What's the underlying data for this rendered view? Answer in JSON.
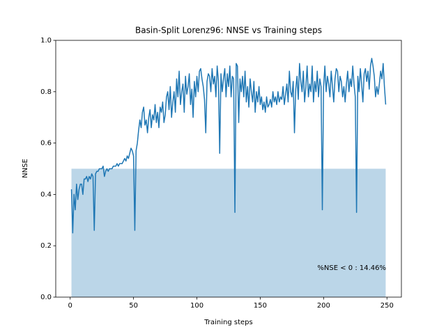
{
  "chart_data": {
    "type": "line",
    "title": "Basin-Split Lorenz96: NNSE vs Training steps",
    "xlabel": "Training steps",
    "ylabel": "NNSE",
    "annotation": "%NSE < 0 : 14.46%",
    "color": "#1f77b4",
    "shaded_region": {
      "x": [
        1,
        249
      ],
      "y": [
        0,
        0.5
      ],
      "color": "#1f77b4"
    },
    "xlim": [
      -11.4,
      261.4
    ],
    "ylim": [
      0,
      1
    ],
    "xticks": [
      0,
      50,
      100,
      150,
      200,
      250
    ],
    "yticks": [
      {
        "value": 0,
        "label": "0.0"
      },
      {
        "value": 0.2,
        "label": "0.2"
      },
      {
        "value": 0.4,
        "label": "0.4"
      },
      {
        "value": 0.6,
        "label": "0.6"
      },
      {
        "value": 0.8,
        "label": "0.8"
      },
      {
        "value": 1,
        "label": "1.0"
      }
    ],
    "x": [
      1,
      2,
      3,
      4,
      5,
      6,
      7,
      8,
      9,
      10,
      11,
      12,
      13,
      14,
      15,
      16,
      17,
      18,
      19,
      20,
      21,
      22,
      23,
      24,
      25,
      26,
      27,
      28,
      29,
      30,
      31,
      32,
      33,
      34,
      35,
      36,
      37,
      38,
      39,
      40,
      41,
      42,
      43,
      44,
      45,
      46,
      47,
      48,
      49,
      50,
      51,
      52,
      53,
      54,
      55,
      56,
      57,
      58,
      59,
      60,
      61,
      62,
      63,
      64,
      65,
      66,
      67,
      68,
      69,
      70,
      71,
      72,
      73,
      74,
      75,
      76,
      77,
      78,
      79,
      80,
      81,
      82,
      83,
      84,
      85,
      86,
      87,
      88,
      89,
      90,
      91,
      92,
      93,
      94,
      95,
      96,
      97,
      98,
      99,
      100,
      101,
      102,
      103,
      104,
      105,
      106,
      107,
      108,
      109,
      110,
      111,
      112,
      113,
      114,
      115,
      116,
      117,
      118,
      119,
      120,
      121,
      122,
      123,
      124,
      125,
      126,
      127,
      128,
      129,
      130,
      131,
      132,
      133,
      134,
      135,
      136,
      137,
      138,
      139,
      140,
      141,
      142,
      143,
      144,
      145,
      146,
      147,
      148,
      149,
      150,
      151,
      152,
      153,
      154,
      155,
      156,
      157,
      158,
      159,
      160,
      161,
      162,
      163,
      164,
      165,
      166,
      167,
      168,
      169,
      170,
      171,
      172,
      173,
      174,
      175,
      176,
      177,
      178,
      179,
      180,
      181,
      182,
      183,
      184,
      185,
      186,
      187,
      188,
      189,
      190,
      191,
      192,
      193,
      194,
      195,
      196,
      197,
      198,
      199,
      200,
      201,
      202,
      203,
      204,
      205,
      206,
      207,
      208,
      209,
      210,
      211,
      212,
      213,
      214,
      215,
      216,
      217,
      218,
      219,
      220,
      221,
      222,
      223,
      224,
      225,
      226,
      227,
      228,
      229,
      230,
      231,
      232,
      233,
      234,
      235,
      236,
      237,
      238,
      239,
      240,
      241,
      242,
      243,
      244,
      245,
      246,
      247,
      248,
      249
    ],
    "values": [
      0.42,
      0.25,
      0.4,
      0.34,
      0.44,
      0.38,
      0.42,
      0.44,
      0.44,
      0.4,
      0.46,
      0.46,
      0.47,
      0.45,
      0.47,
      0.46,
      0.48,
      0.47,
      0.26,
      0.48,
      0.49,
      0.49,
      0.5,
      0.5,
      0.5,
      0.51,
      0.47,
      0.49,
      0.5,
      0.49,
      0.5,
      0.5,
      0.5,
      0.51,
      0.51,
      0.51,
      0.52,
      0.51,
      0.52,
      0.52,
      0.52,
      0.53,
      0.54,
      0.53,
      0.55,
      0.54,
      0.56,
      0.58,
      0.57,
      0.55,
      0.26,
      0.57,
      0.6,
      0.65,
      0.69,
      0.66,
      0.72,
      0.74,
      0.67,
      0.69,
      0.64,
      0.7,
      0.73,
      0.66,
      0.71,
      0.69,
      0.75,
      0.68,
      0.72,
      0.66,
      0.74,
      0.72,
      0.76,
      0.68,
      0.71,
      0.78,
      0.8,
      0.73,
      0.82,
      0.7,
      0.76,
      0.8,
      0.72,
      0.85,
      0.78,
      0.88,
      0.75,
      0.8,
      0.83,
      0.72,
      0.86,
      0.79,
      0.82,
      0.87,
      0.75,
      0.81,
      0.7,
      0.84,
      0.78,
      0.86,
      0.8,
      0.88,
      0.89,
      0.85,
      0.82,
      0.77,
      0.64,
      0.84,
      0.87,
      0.86,
      0.8,
      0.89,
      0.83,
      0.86,
      0.78,
      0.9,
      0.84,
      0.56,
      0.87,
      0.8,
      0.85,
      0.89,
      0.78,
      0.87,
      0.82,
      0.9,
      0.78,
      0.86,
      0.85,
      0.33,
      0.91,
      0.9,
      0.68,
      0.85,
      0.8,
      0.86,
      0.78,
      0.88,
      0.76,
      0.82,
      0.74,
      0.85,
      0.8,
      0.76,
      0.84,
      0.72,
      0.8,
      0.76,
      0.82,
      0.75,
      0.78,
      0.73,
      0.76,
      0.72,
      0.78,
      0.74,
      0.75,
      0.77,
      0.74,
      0.8,
      0.76,
      0.78,
      0.75,
      0.8,
      0.76,
      0.78,
      0.77,
      0.82,
      0.75,
      0.79,
      0.83,
      0.76,
      0.88,
      0.8,
      0.78,
      0.84,
      0.64,
      0.81,
      0.86,
      0.77,
      0.91,
      0.84,
      0.8,
      0.88,
      0.76,
      0.82,
      0.9,
      0.78,
      0.83,
      0.8,
      0.9,
      0.76,
      0.84,
      0.8,
      0.88,
      0.78,
      0.85,
      0.82,
      0.34,
      0.82,
      0.9,
      0.8,
      0.86,
      0.83,
      0.78,
      0.88,
      0.82,
      0.76,
      0.85,
      0.89,
      0.88,
      0.8,
      0.86,
      0.84,
      0.78,
      0.82,
      0.76,
      0.83,
      0.88,
      0.8,
      0.85,
      0.82,
      0.9,
      0.83,
      0.78,
      0.33,
      0.86,
      0.8,
      0.89,
      0.83,
      0.76,
      0.87,
      0.89,
      0.84,
      0.88,
      0.81,
      0.9,
      0.93,
      0.9,
      0.86,
      0.78,
      0.82,
      0.79,
      0.83,
      0.88,
      0.85,
      0.91,
      0.82,
      0.75
    ]
  }
}
